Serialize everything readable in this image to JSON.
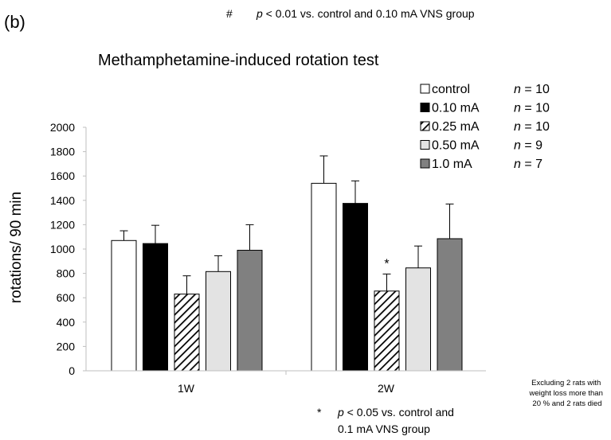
{
  "panel_label": "(b)",
  "footnote_top": {
    "symbol": "#",
    "p": "p",
    "rest": " < 0.01 vs. control and 0.10 mA VNS group"
  },
  "footnote_bottom": {
    "symbol": "*",
    "p": "p",
    "line1_rest": " < 0.05 vs. control and",
    "line2": "0.1 mA VNS group"
  },
  "side_note": [
    "Excluding 2 rats with",
    "weight loss more than",
    "20 % and 2 rats died"
  ],
  "chart_data": {
    "type": "bar",
    "title": "Methamphetamine-induced rotation test",
    "xlabel": "",
    "ylabel": "rotations/ 90 min",
    "ylim": [
      0,
      2000
    ],
    "yticks": [
      0,
      200,
      400,
      600,
      800,
      1000,
      1200,
      1400,
      1600,
      1800,
      2000
    ],
    "categories": [
      "1W",
      "2W"
    ],
    "series": [
      {
        "name": "control",
        "n_label": "n",
        "n_value": " = 10",
        "pattern": "white",
        "values": [
          1070,
          1540
        ],
        "errors": [
          80,
          225
        ]
      },
      {
        "name": "0.10 mA",
        "n_label": "n",
        "n_value": " = 10",
        "pattern": "black",
        "values": [
          1045,
          1375
        ],
        "errors": [
          150,
          185
        ]
      },
      {
        "name": "0.25 mA",
        "n_label": "n",
        "n_value": " = 10",
        "pattern": "hatch",
        "values": [
          630,
          655
        ],
        "errors": [
          150,
          140
        ]
      },
      {
        "name": "0.50 mA",
        "n_label": "n",
        "n_value": " = 9",
        "pattern": "lightgray",
        "values": [
          815,
          845
        ],
        "errors": [
          130,
          180
        ]
      },
      {
        "name": "1.0 mA",
        "n_label": "n",
        "n_value": " = 7",
        "pattern": "darkgray",
        "values": [
          990,
          1085
        ],
        "errors": [
          210,
          285
        ]
      }
    ],
    "annotations": [
      {
        "text": "*",
        "category": "2W",
        "series": "0.25 mA"
      }
    ],
    "legend_position": "top-right",
    "grid": false
  }
}
